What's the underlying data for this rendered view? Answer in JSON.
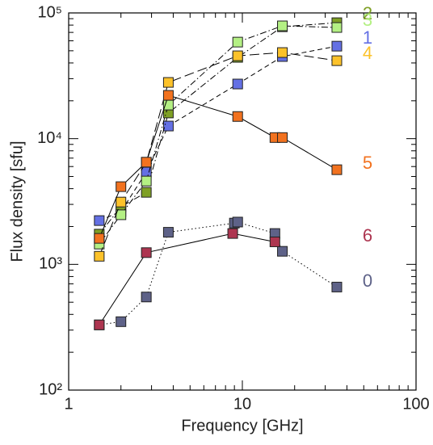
{
  "chart_data": {
    "type": "line",
    "x_log": true,
    "y_log": true,
    "xlabel": "Frequency [GHz]",
    "ylabel": "Flux density [sfu]",
    "xlim": [
      1,
      100
    ],
    "ylim": [
      100,
      100000
    ],
    "xticks": [
      1,
      10,
      100
    ],
    "yticks": [
      {
        "value": 100,
        "label": "10²"
      },
      {
        "value": 1000,
        "label": "10³"
      },
      {
        "value": 10000,
        "label": "10⁴"
      },
      {
        "value": 100000,
        "label": "10⁵"
      }
    ],
    "series": [
      {
        "name": "0",
        "color": "#5e6288",
        "linestyle": "dotted",
        "x": [
          1.5,
          2.0,
          2.8,
          3.75,
          9.0,
          9.4,
          15.4,
          17,
          35
        ],
        "values": [
          330,
          350,
          550,
          1800,
          2130,
          2170,
          1760,
          1270,
          660
        ]
      },
      {
        "name": "1",
        "color": "#6470e4",
        "linestyle": "dashed",
        "x": [
          1.5,
          2.0,
          2.8,
          3.75,
          9.4,
          17,
          35
        ],
        "values": [
          2230,
          2630,
          5420,
          12600,
          27200,
          45000,
          54400
        ]
      },
      {
        "name": "2",
        "color": "#7fa025",
        "linestyle": "dashdot",
        "x": [
          1.5,
          2.0,
          2.8,
          3.75,
          9.4,
          17,
          35
        ],
        "values": [
          1740,
          2870,
          3740,
          16000,
          44300,
          77600,
          83600
        ]
      },
      {
        "name": "3",
        "color": "#b4f084",
        "linestyle": "dashdot",
        "x": [
          1.5,
          2.0,
          2.8,
          3.75,
          9.4,
          17,
          35
        ],
        "values": [
          1450,
          2480,
          4600,
          18500,
          58600,
          78900,
          76600
        ]
      },
      {
        "name": "4",
        "color": "#fcc22a",
        "linestyle": "longdash",
        "x": [
          1.5,
          2.0,
          2.8,
          3.75,
          9.4,
          17,
          35
        ],
        "values": [
          1160,
          3130,
          6480,
          28000,
          45600,
          48400,
          41700
        ]
      },
      {
        "name": "5",
        "color": "#f2721f",
        "linestyle": "solid",
        "x": [
          1.5,
          2.0,
          2.8,
          3.75,
          9.4,
          15.4,
          17,
          35
        ],
        "values": [
          1610,
          4150,
          6500,
          22100,
          15000,
          10200,
          10200,
          5660
        ]
      },
      {
        "name": "6",
        "color": "#ad3550",
        "linestyle": "solid",
        "x": [
          1.5,
          2.8,
          8.8,
          15.4
        ],
        "values": [
          330,
          1240,
          1760,
          1510
        ]
      }
    ]
  }
}
